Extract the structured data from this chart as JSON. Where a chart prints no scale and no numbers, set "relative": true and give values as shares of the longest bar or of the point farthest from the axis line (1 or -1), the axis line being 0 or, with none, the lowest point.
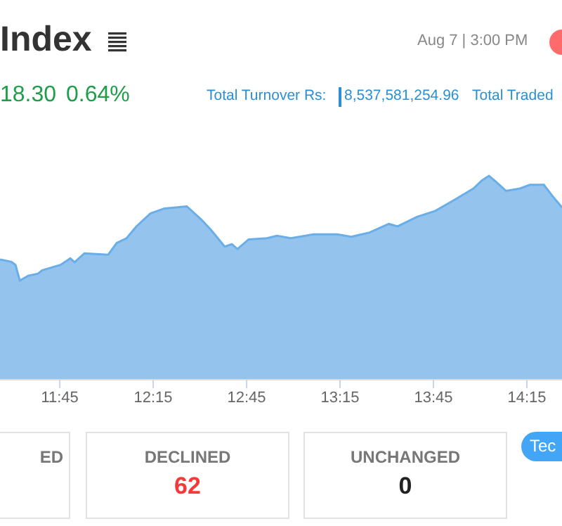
{
  "chart_data": {
    "type": "area",
    "title": "Index",
    "relative": true,
    "x": [
      11.43,
      11.491,
      11.513,
      11.536,
      11.581,
      11.633,
      11.656,
      11.754,
      11.806,
      11.829,
      11.882,
      12.009,
      12.055,
      12.107,
      12.16,
      12.235,
      12.31,
      12.43,
      12.506,
      12.558,
      12.633,
      12.671,
      12.701,
      12.761,
      12.859,
      12.912,
      12.987,
      13.107,
      13.235,
      13.31,
      13.408,
      13.511,
      13.558,
      13.662,
      13.76,
      13.859,
      13.964,
      14.009,
      14.047,
      14.083,
      14.138,
      14.214,
      14.266,
      14.341,
      14.385,
      14.438
    ],
    "series": [
      {
        "color": "#6aaee8",
        "values": [
          0.59,
          0.578,
          0.563,
          0.486,
          0.51,
          0.52,
          0.537,
          0.563,
          0.595,
          0.576,
          0.62,
          0.613,
          0.671,
          0.694,
          0.752,
          0.815,
          0.84,
          0.85,
          0.787,
          0.736,
          0.653,
          0.665,
          0.641,
          0.688,
          0.694,
          0.706,
          0.694,
          0.713,
          0.713,
          0.701,
          0.722,
          0.764,
          0.752,
          0.799,
          0.828,
          0.88,
          0.938,
          0.977,
          1,
          0.972,
          0.926,
          0.938,
          0.956,
          0.956,
          0.903,
          0.845
        ]
      }
    ],
    "xlim": [
      11.43,
      14.438
    ],
    "xticks": [
      {
        "value": 11.75,
        "label": "11:45"
      },
      {
        "value": 12.25,
        "label": "12:15"
      },
      {
        "value": 12.75,
        "label": "12:45"
      },
      {
        "value": 13.25,
        "label": "13:15"
      },
      {
        "value": 13.75,
        "label": "13:45"
      },
      {
        "value": 14.25,
        "label": "14:15"
      }
    ],
    "annotations": [
      "Aug 7 | 3:00 PM",
      "18.30",
      "0.64%",
      "Total Turnover Rs:",
      "8,537,581,254.96",
      "Total Traded",
      "ED",
      "DECLINED",
      "62",
      "UNCHANGED",
      "0",
      "Tec"
    ]
  }
}
